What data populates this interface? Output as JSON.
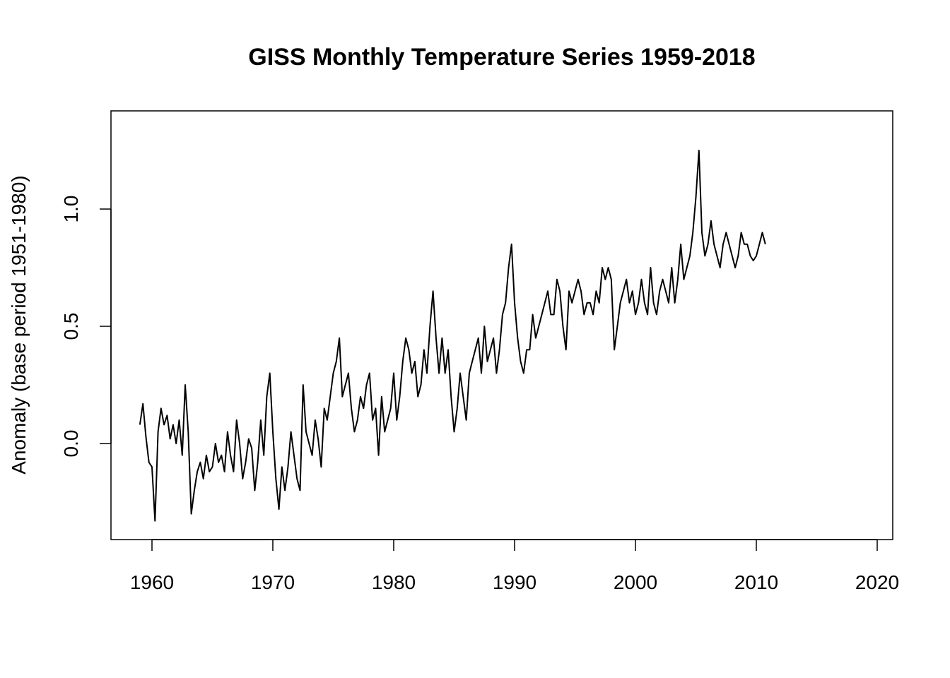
{
  "chart_data": {
    "type": "line",
    "title": "GISS Monthly Temperature Series 1959-2018",
    "xlabel": "",
    "ylabel": "Anomaly (base period 1951-1980)",
    "xlim": [
      1959.0,
      2019.0
    ],
    "ylim": [
      -0.35,
      1.35
    ],
    "x_ticks": [
      1960,
      1970,
      1980,
      1990,
      2000,
      2010,
      2020
    ],
    "x_tick_labels": [
      "1960",
      "1970",
      "1980",
      "1990",
      "2000",
      "2010",
      "2020"
    ],
    "y_ticks": [
      0.0,
      0.5,
      1.0
    ],
    "y_tick_labels": [
      "0.0",
      "0.5",
      "1.0"
    ],
    "x_start": 1959.0,
    "x_step": 0.25,
    "series": [
      {
        "name": "",
        "color": "#000000",
        "values": [
          0.08,
          0.17,
          0.03,
          -0.08,
          -0.1,
          -0.33,
          0.05,
          0.15,
          0.08,
          0.12,
          0.02,
          0.08,
          0.0,
          0.1,
          -0.05,
          0.25,
          0.05,
          -0.3,
          -0.2,
          -0.12,
          -0.08,
          -0.15,
          -0.05,
          -0.12,
          -0.1,
          0.0,
          -0.08,
          -0.05,
          -0.12,
          0.05,
          -0.05,
          -0.12,
          0.1,
          0.0,
          -0.15,
          -0.08,
          0.02,
          -0.02,
          -0.2,
          -0.08,
          0.1,
          -0.05,
          0.2,
          0.3,
          0.05,
          -0.15,
          -0.28,
          -0.1,
          -0.2,
          -0.1,
          0.05,
          -0.05,
          -0.15,
          -0.2,
          0.25,
          0.05,
          0.0,
          -0.05,
          0.1,
          0.02,
          -0.1,
          0.15,
          0.1,
          0.2,
          0.3,
          0.35,
          0.45,
          0.2,
          0.25,
          0.3,
          0.15,
          0.05,
          0.1,
          0.2,
          0.15,
          0.25,
          0.3,
          0.1,
          0.15,
          -0.05,
          0.2,
          0.05,
          0.1,
          0.15,
          0.3,
          0.1,
          0.2,
          0.35,
          0.45,
          0.4,
          0.3,
          0.35,
          0.2,
          0.25,
          0.4,
          0.3,
          0.5,
          0.65,
          0.45,
          0.3,
          0.45,
          0.3,
          0.4,
          0.2,
          0.05,
          0.15,
          0.3,
          0.2,
          0.1,
          0.3,
          0.35,
          0.4,
          0.45,
          0.3,
          0.5,
          0.35,
          0.4,
          0.45,
          0.3,
          0.4,
          0.55,
          0.6,
          0.75,
          0.85,
          0.6,
          0.45,
          0.35,
          0.3,
          0.4,
          0.4,
          0.55,
          0.45,
          0.5,
          0.55,
          0.6,
          0.65,
          0.55,
          0.55,
          0.7,
          0.65,
          0.5,
          0.4,
          0.65,
          0.6,
          0.65,
          0.7,
          0.65,
          0.55,
          0.6,
          0.6,
          0.55,
          0.65,
          0.6,
          0.75,
          0.7,
          0.75,
          0.7,
          0.4,
          0.5,
          0.6,
          0.65,
          0.7,
          0.6,
          0.65,
          0.55,
          0.6,
          0.7,
          0.6,
          0.55,
          0.75,
          0.6,
          0.55,
          0.65,
          0.7,
          0.65,
          0.6,
          0.75,
          0.6,
          0.7,
          0.85,
          0.7,
          0.75,
          0.8,
          0.9,
          1.05,
          1.25,
          0.9,
          0.8,
          0.85,
          0.95,
          0.85,
          0.8,
          0.75,
          0.85,
          0.9,
          0.85,
          0.8,
          0.75,
          0.8,
          0.9,
          0.85,
          0.85,
          0.8,
          0.78,
          0.8,
          0.85,
          0.9,
          0.85
        ]
      }
    ]
  }
}
